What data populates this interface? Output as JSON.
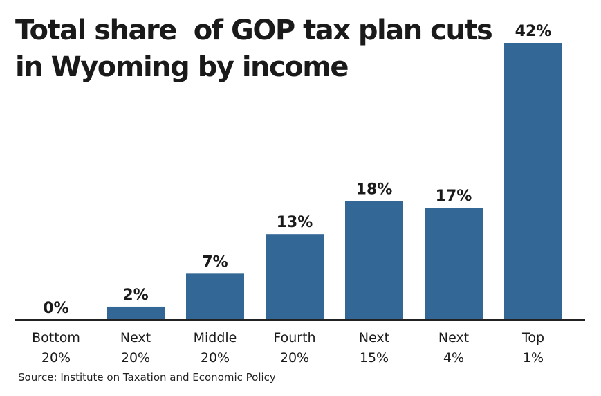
{
  "title_lines": [
    "Total share  of GOP tax plan cuts",
    "in Wyoming by income"
  ],
  "source": "Source: Institute on Taxation and Economic Policy",
  "colors": {
    "bar": "#336896",
    "text": "#1a1a1a",
    "axis": "#222222"
  },
  "chart_data": {
    "type": "bar",
    "title": "Total share  of GOP tax plan cuts in Wyoming by income",
    "xlabel": "",
    "ylabel": "",
    "ylim": [
      0,
      42
    ],
    "categories": [
      [
        "Bottom",
        "20%"
      ],
      [
        "Next",
        "20%"
      ],
      [
        "Middle",
        "20%"
      ],
      [
        "Fourth",
        "20%"
      ],
      [
        "Next",
        "15%"
      ],
      [
        "Next",
        "4%"
      ],
      [
        "Top",
        "1%"
      ]
    ],
    "values": [
      0,
      2,
      7,
      13,
      18,
      17,
      42
    ],
    "data_labels": [
      "0%",
      "2%",
      "7%",
      "13%",
      "18%",
      "17%",
      "42%"
    ],
    "grid": false
  }
}
